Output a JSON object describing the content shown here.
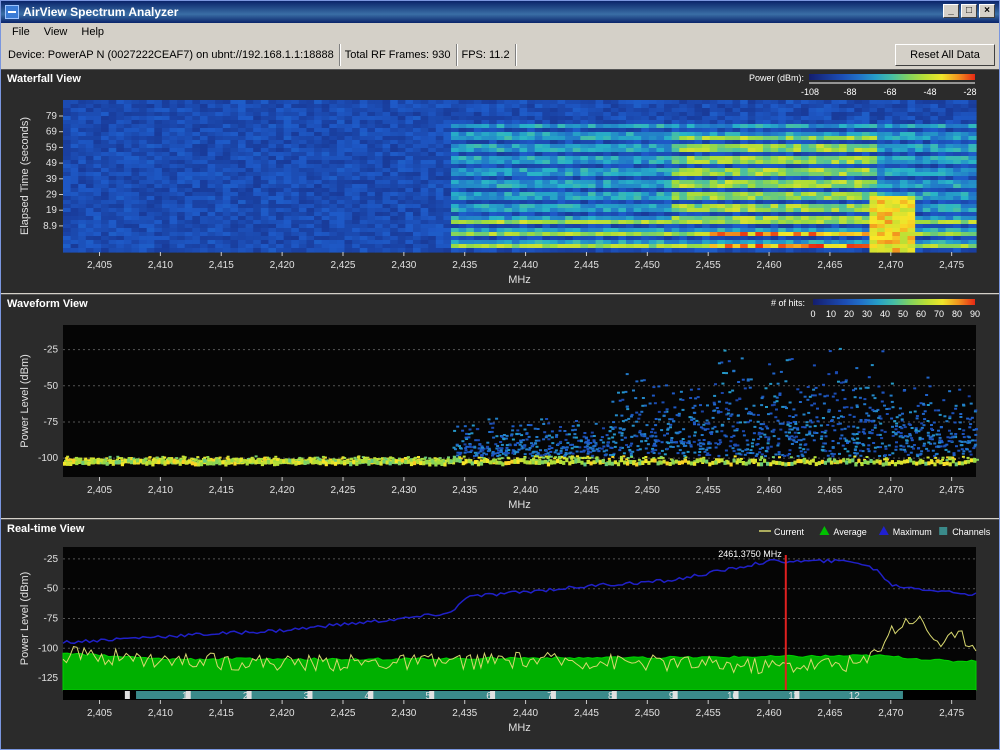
{
  "window": {
    "title": "AirView Spectrum Analyzer",
    "buttons": [
      "_",
      "□",
      "×"
    ]
  },
  "menu": [
    "File",
    "View",
    "Help"
  ],
  "status": {
    "device": "Device: PowerAP N (0027222CEAF7) on ubnt://192.168.1.1:18888",
    "frames": "Total RF Frames: 930",
    "fps": "FPS: 11.2",
    "reset_label": "Reset All Data"
  },
  "x_ticks": [
    "2,405",
    "2,410",
    "2,415",
    "2,420",
    "2,425",
    "2,430",
    "2,435",
    "2,440",
    "2,445",
    "2,450",
    "2,455",
    "2,460",
    "2,465",
    "2,470",
    "2,475"
  ],
  "x_tick_values": [
    2405,
    2410,
    2415,
    2420,
    2425,
    2430,
    2435,
    2440,
    2445,
    2450,
    2455,
    2460,
    2465,
    2470,
    2475
  ],
  "x_range": [
    2402,
    2477
  ],
  "x_label": "MHz",
  "waterfall": {
    "title": "Waterfall View",
    "ylabel": "Elapsed Time (seconds)",
    "y_ticks": [
      "79",
      "69",
      "59",
      "49",
      "39",
      "29",
      "19",
      "8.9"
    ],
    "legend_label": "Power (dBm):",
    "legend_ticks": [
      "-108",
      "-88",
      "-68",
      "-48",
      "-28"
    ]
  },
  "waveform": {
    "title": "Waveform View",
    "ylabel": "Power Level (dBm)",
    "y_ticks": [
      "-25",
      "-50",
      "-75",
      "-100"
    ],
    "legend_label": "# of hits:",
    "legend_ticks": [
      "0",
      "10",
      "20",
      "30",
      "40",
      "50",
      "60",
      "70",
      "80",
      "90"
    ]
  },
  "realtime": {
    "title": "Real-time View",
    "ylabel": "Power Level (dBm)",
    "y_ticks": [
      "-25",
      "-50",
      "-75",
      "-100",
      "-125"
    ],
    "legend": [
      {
        "label": "Current",
        "color": "#d8d870"
      },
      {
        "label": "Average",
        "color": "#00c000"
      },
      {
        "label": "Maximum",
        "color": "#2020d0"
      },
      {
        "label": "Channels",
        "color": "#3a8a8a"
      }
    ],
    "marker_label": "2461.3750 MHz",
    "marker_mhz": 2461.375,
    "channels": [
      "1",
      "2",
      "3",
      "4",
      "5",
      "6",
      "7",
      "8",
      "9",
      "10",
      "11",
      "12"
    ]
  },
  "chart_data": [
    {
      "type": "heatmap",
      "title": "Waterfall View",
      "xlabel": "MHz",
      "ylabel": "Elapsed Time (seconds)",
      "xlim": [
        2402,
        2477
      ],
      "y_ticks": [
        79,
        69,
        59,
        49,
        39,
        29,
        19,
        8.9
      ]
    },
    {
      "type": "scatter",
      "title": "Waveform View",
      "xlabel": "MHz",
      "ylabel": "Power Level (dBm)",
      "xlim": [
        2402,
        2477
      ],
      "ylim": [
        -110,
        -10
      ]
    },
    {
      "type": "line",
      "title": "Real-time View",
      "xlabel": "MHz",
      "ylabel": "Power Level (dBm)",
      "xlim": [
        2402,
        2477
      ],
      "ylim": [
        -135,
        -15
      ],
      "series": [
        {
          "name": "Maximum",
          "x": [
            2402,
            2410,
            2420,
            2430,
            2434,
            2435,
            2445,
            2452,
            2455,
            2460,
            2467,
            2469,
            2470,
            2475,
            2477
          ],
          "values": [
            -95,
            -90,
            -85,
            -75,
            -70,
            -57,
            -48,
            -43,
            -37,
            -27,
            -27,
            -35,
            -47,
            -53,
            -55
          ]
        },
        {
          "name": "Average",
          "x": [
            2402,
            2410,
            2420,
            2430,
            2440,
            2450,
            2460,
            2469,
            2475,
            2477
          ],
          "values": [
            -104,
            -109,
            -109,
            -109,
            -108,
            -108,
            -107,
            -106,
            -111,
            -110
          ]
        },
        {
          "name": "Current",
          "x": [
            2402,
            2410,
            2420,
            2430,
            2440,
            2450,
            2460,
            2468,
            2470,
            2472,
            2474,
            2476,
            2477
          ],
          "values": [
            -105,
            -110,
            -112,
            -112,
            -110,
            -112,
            -115,
            -112,
            -85,
            -73,
            -95,
            -90,
            -99
          ]
        }
      ]
    }
  ]
}
